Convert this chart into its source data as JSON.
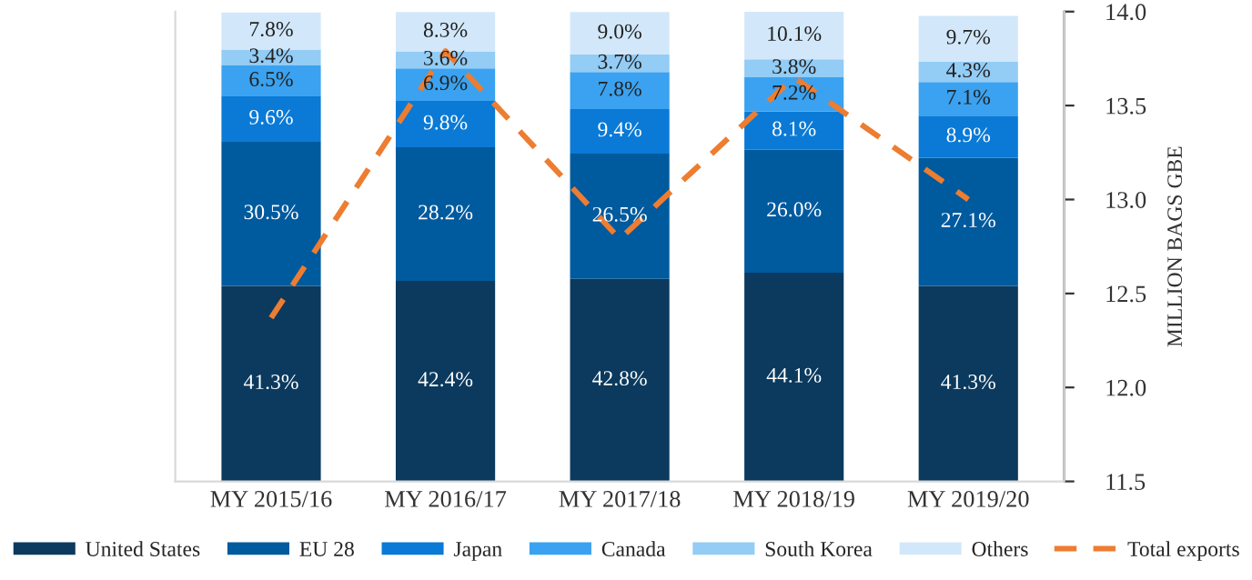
{
  "chart_data": {
    "type": "bar",
    "stacked": true,
    "categories": [
      "MY 2015/16",
      "MY 2016/17",
      "MY 2017/18",
      "MY 2018/19",
      "MY 2019/20"
    ],
    "y2label": "MILLION BAGS GBE",
    "y2lim": [
      11.5,
      14.0
    ],
    "y2ticks": [
      {
        "value": 11.5,
        "label": "11.5"
      },
      {
        "value": 12.0,
        "label": "12.0"
      },
      {
        "value": 12.5,
        "label": "12.5"
      },
      {
        "value": 13.0,
        "label": "13.0"
      },
      {
        "value": 13.5,
        "label": "13.5"
      },
      {
        "value": 14.0,
        "label": "14.0"
      }
    ],
    "grid": false,
    "legend": "bottom",
    "series": [
      {
        "name": "United States",
        "color": "#0b3a5e",
        "values": [
          41.3,
          42.4,
          42.8,
          44.1,
          41.3
        ],
        "value_labels": [
          "41.3%",
          "42.4%",
          "42.8%",
          "44.1%",
          "41.3%"
        ]
      },
      {
        "name": "EU 28",
        "color": "#005a9e",
        "values": [
          30.5,
          28.2,
          26.5,
          26.0,
          27.1
        ],
        "value_labels": [
          "30.5%",
          "28.2%",
          "26.5%",
          "26.0%",
          "27.1%"
        ]
      },
      {
        "name": "Japan",
        "color": "#0a7ad6",
        "values": [
          9.6,
          9.8,
          9.4,
          8.1,
          8.9
        ],
        "value_labels": [
          "9.6%",
          "9.8%",
          "9.4%",
          "8.1%",
          "8.9%"
        ]
      },
      {
        "name": "Canada",
        "color": "#3aa2f0",
        "values": [
          6.5,
          6.9,
          7.8,
          7.2,
          7.1
        ],
        "value_labels": [
          "6.5%",
          "6.9%",
          "7.8%",
          "7.2%",
          "7.1%"
        ]
      },
      {
        "name": "South Korea",
        "color": "#93ccf5",
        "values": [
          3.4,
          3.6,
          3.7,
          3.8,
          4.3
        ],
        "value_labels": [
          "3.4%",
          "3.6%",
          "3.7%",
          "3.8%",
          "4.3%"
        ]
      },
      {
        "name": "Others",
        "color": "#d2e8fa",
        "values": [
          7.8,
          8.3,
          9.0,
          10.1,
          9.7
        ],
        "value_labels": [
          "7.8%",
          "8.3%",
          "9.0%",
          "10.1%",
          "9.7%"
        ]
      },
      {
        "name": "Total exports",
        "type": "line",
        "axis": "y2",
        "color": "#ed7d31",
        "line_style": "dashed",
        "marker": "none",
        "values": [
          12.37,
          13.79,
          12.79,
          13.65,
          13.0
        ]
      }
    ]
  }
}
